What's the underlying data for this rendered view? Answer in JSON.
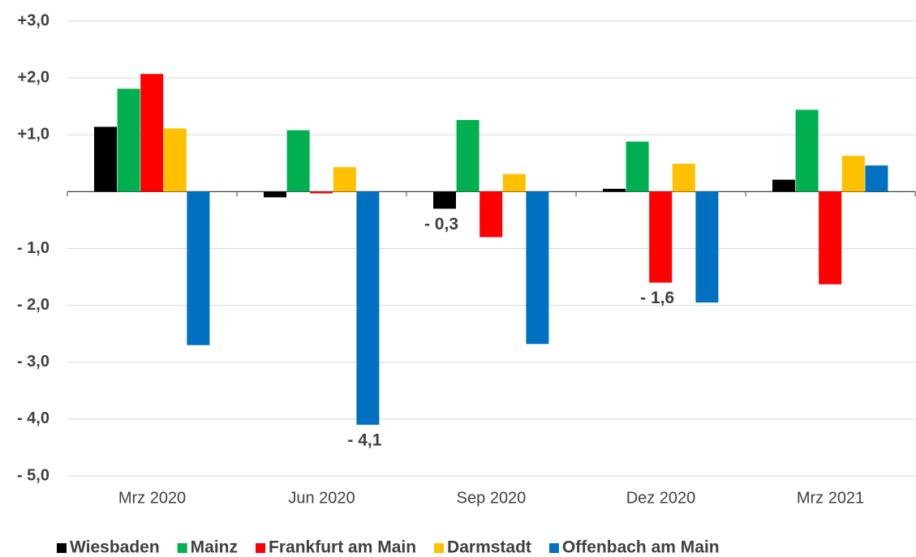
{
  "chart_data": {
    "type": "bar",
    "categories": [
      "Mrz 2020",
      "Jun 2020",
      "Sep 2020",
      "Dez 2020",
      "Mrz 2021"
    ],
    "series": [
      {
        "name": "Wiesbaden",
        "color": "#000000",
        "values": [
          1.14,
          -0.1,
          -0.3,
          0.05,
          0.21
        ],
        "value_labels": [
          null,
          null,
          "- 0,3",
          null,
          null
        ]
      },
      {
        "name": "Mainz",
        "color": "#00b050",
        "values": [
          1.81,
          1.08,
          1.26,
          0.88,
          1.44
        ]
      },
      {
        "name": "Frankfurt am Main",
        "color": "#ff0000",
        "values": [
          2.07,
          -0.03,
          -0.8,
          -1.6,
          -1.63
        ],
        "value_labels": [
          null,
          null,
          null,
          "- 1,6",
          null
        ]
      },
      {
        "name": "Darmstadt",
        "color": "#ffc000",
        "values": [
          1.11,
          0.43,
          0.31,
          0.49,
          0.63
        ]
      },
      {
        "name": "Offenbach am Main",
        "color": "#0070c0",
        "values": [
          -2.7,
          -4.1,
          -2.68,
          -1.95,
          0.46
        ],
        "value_labels": [
          null,
          "- 4,1",
          null,
          null,
          null
        ]
      }
    ],
    "ylim": [
      -5,
      3
    ],
    "yticks": [
      {
        "value": 3,
        "label": "+3,0"
      },
      {
        "value": 2,
        "label": "+2,0"
      },
      {
        "value": 1,
        "label": "+1,0"
      },
      {
        "value": -1,
        "label": "- 1,0"
      },
      {
        "value": -2,
        "label": "- 2,0"
      },
      {
        "value": -3,
        "label": "- 3,0"
      },
      {
        "value": -4,
        "label": "- 4,0"
      },
      {
        "value": -5,
        "label": "- 5,0"
      }
    ],
    "grid": true,
    "legend": "bottom"
  }
}
